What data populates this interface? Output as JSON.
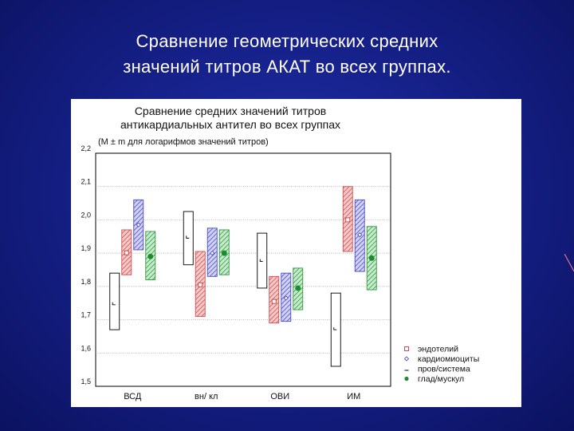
{
  "slide": {
    "title_line1": "Сравнение геометрических средних",
    "title_line2": "значений титров АКАТ во всех группах."
  },
  "colors": {
    "background": "#16218a",
    "endothelium": "#e06060",
    "cardiomyocytes": "#6a6ad8",
    "conduction": "#000000",
    "smooth_muscle": "#3aa84a"
  },
  "chart_data": {
    "type": "box",
    "title_line1": "Сравнение средних значений титров",
    "title_line2": "антикардиальных антител во всех группах",
    "subtitle": "(M ± m для логарифмов значений титров)",
    "xlabel": "",
    "ylabel": "",
    "ylim": [
      1.5,
      2.2
    ],
    "yticks": [
      "1,5",
      "1,6",
      "1,7",
      "1,8",
      "1,9",
      "2,0",
      "2,1",
      "2,2"
    ],
    "grid": true,
    "legend_position": "bottom-right",
    "categories": [
      "ВСД",
      "вн/ кл",
      "ОВИ",
      "ИМ"
    ],
    "series": [
      {
        "name": "эндотелий",
        "marker": "square",
        "color": "#e06060",
        "boxes": [
          {
            "mean": 1.901,
            "low": 1.835,
            "high": 1.97
          },
          {
            "mean": 1.805,
            "low": 1.71,
            "high": 1.905
          },
          {
            "mean": 1.755,
            "low": 1.69,
            "high": 1.83
          },
          {
            "mean": 2.0,
            "low": 1.905,
            "high": 2.1
          }
        ]
      },
      {
        "name": "кардиомиоциты",
        "marker": "diamond",
        "color": "#6a6ad8",
        "boxes": [
          {
            "mean": 1.985,
            "low": 1.91,
            "high": 2.06
          },
          {
            "mean": 1.9,
            "low": 1.83,
            "high": 1.975
          },
          {
            "mean": 1.765,
            "low": 1.695,
            "high": 1.84
          },
          {
            "mean": 1.955,
            "low": 1.845,
            "high": 2.06
          }
        ]
      },
      {
        "name": "пров/система",
        "marker": "dash",
        "color": "#000000",
        "boxes": [
          {
            "mean": 1.745,
            "low": 1.67,
            "high": 1.84
          },
          {
            "mean": 1.945,
            "low": 1.865,
            "high": 2.025
          },
          {
            "mean": 1.875,
            "low": 1.795,
            "high": 1.96
          },
          {
            "mean": 1.67,
            "low": 1.56,
            "high": 1.78
          }
        ]
      },
      {
        "name": "глад/мускул",
        "marker": "circle",
        "color": "#3aa84a",
        "boxes": [
          {
            "mean": 1.89,
            "low": 1.82,
            "high": 1.965
          },
          {
            "mean": 1.9,
            "low": 1.835,
            "high": 1.97
          },
          {
            "mean": 1.795,
            "low": 1.73,
            "high": 1.855
          },
          {
            "mean": 1.885,
            "low": 1.79,
            "high": 1.98
          }
        ]
      }
    ]
  }
}
